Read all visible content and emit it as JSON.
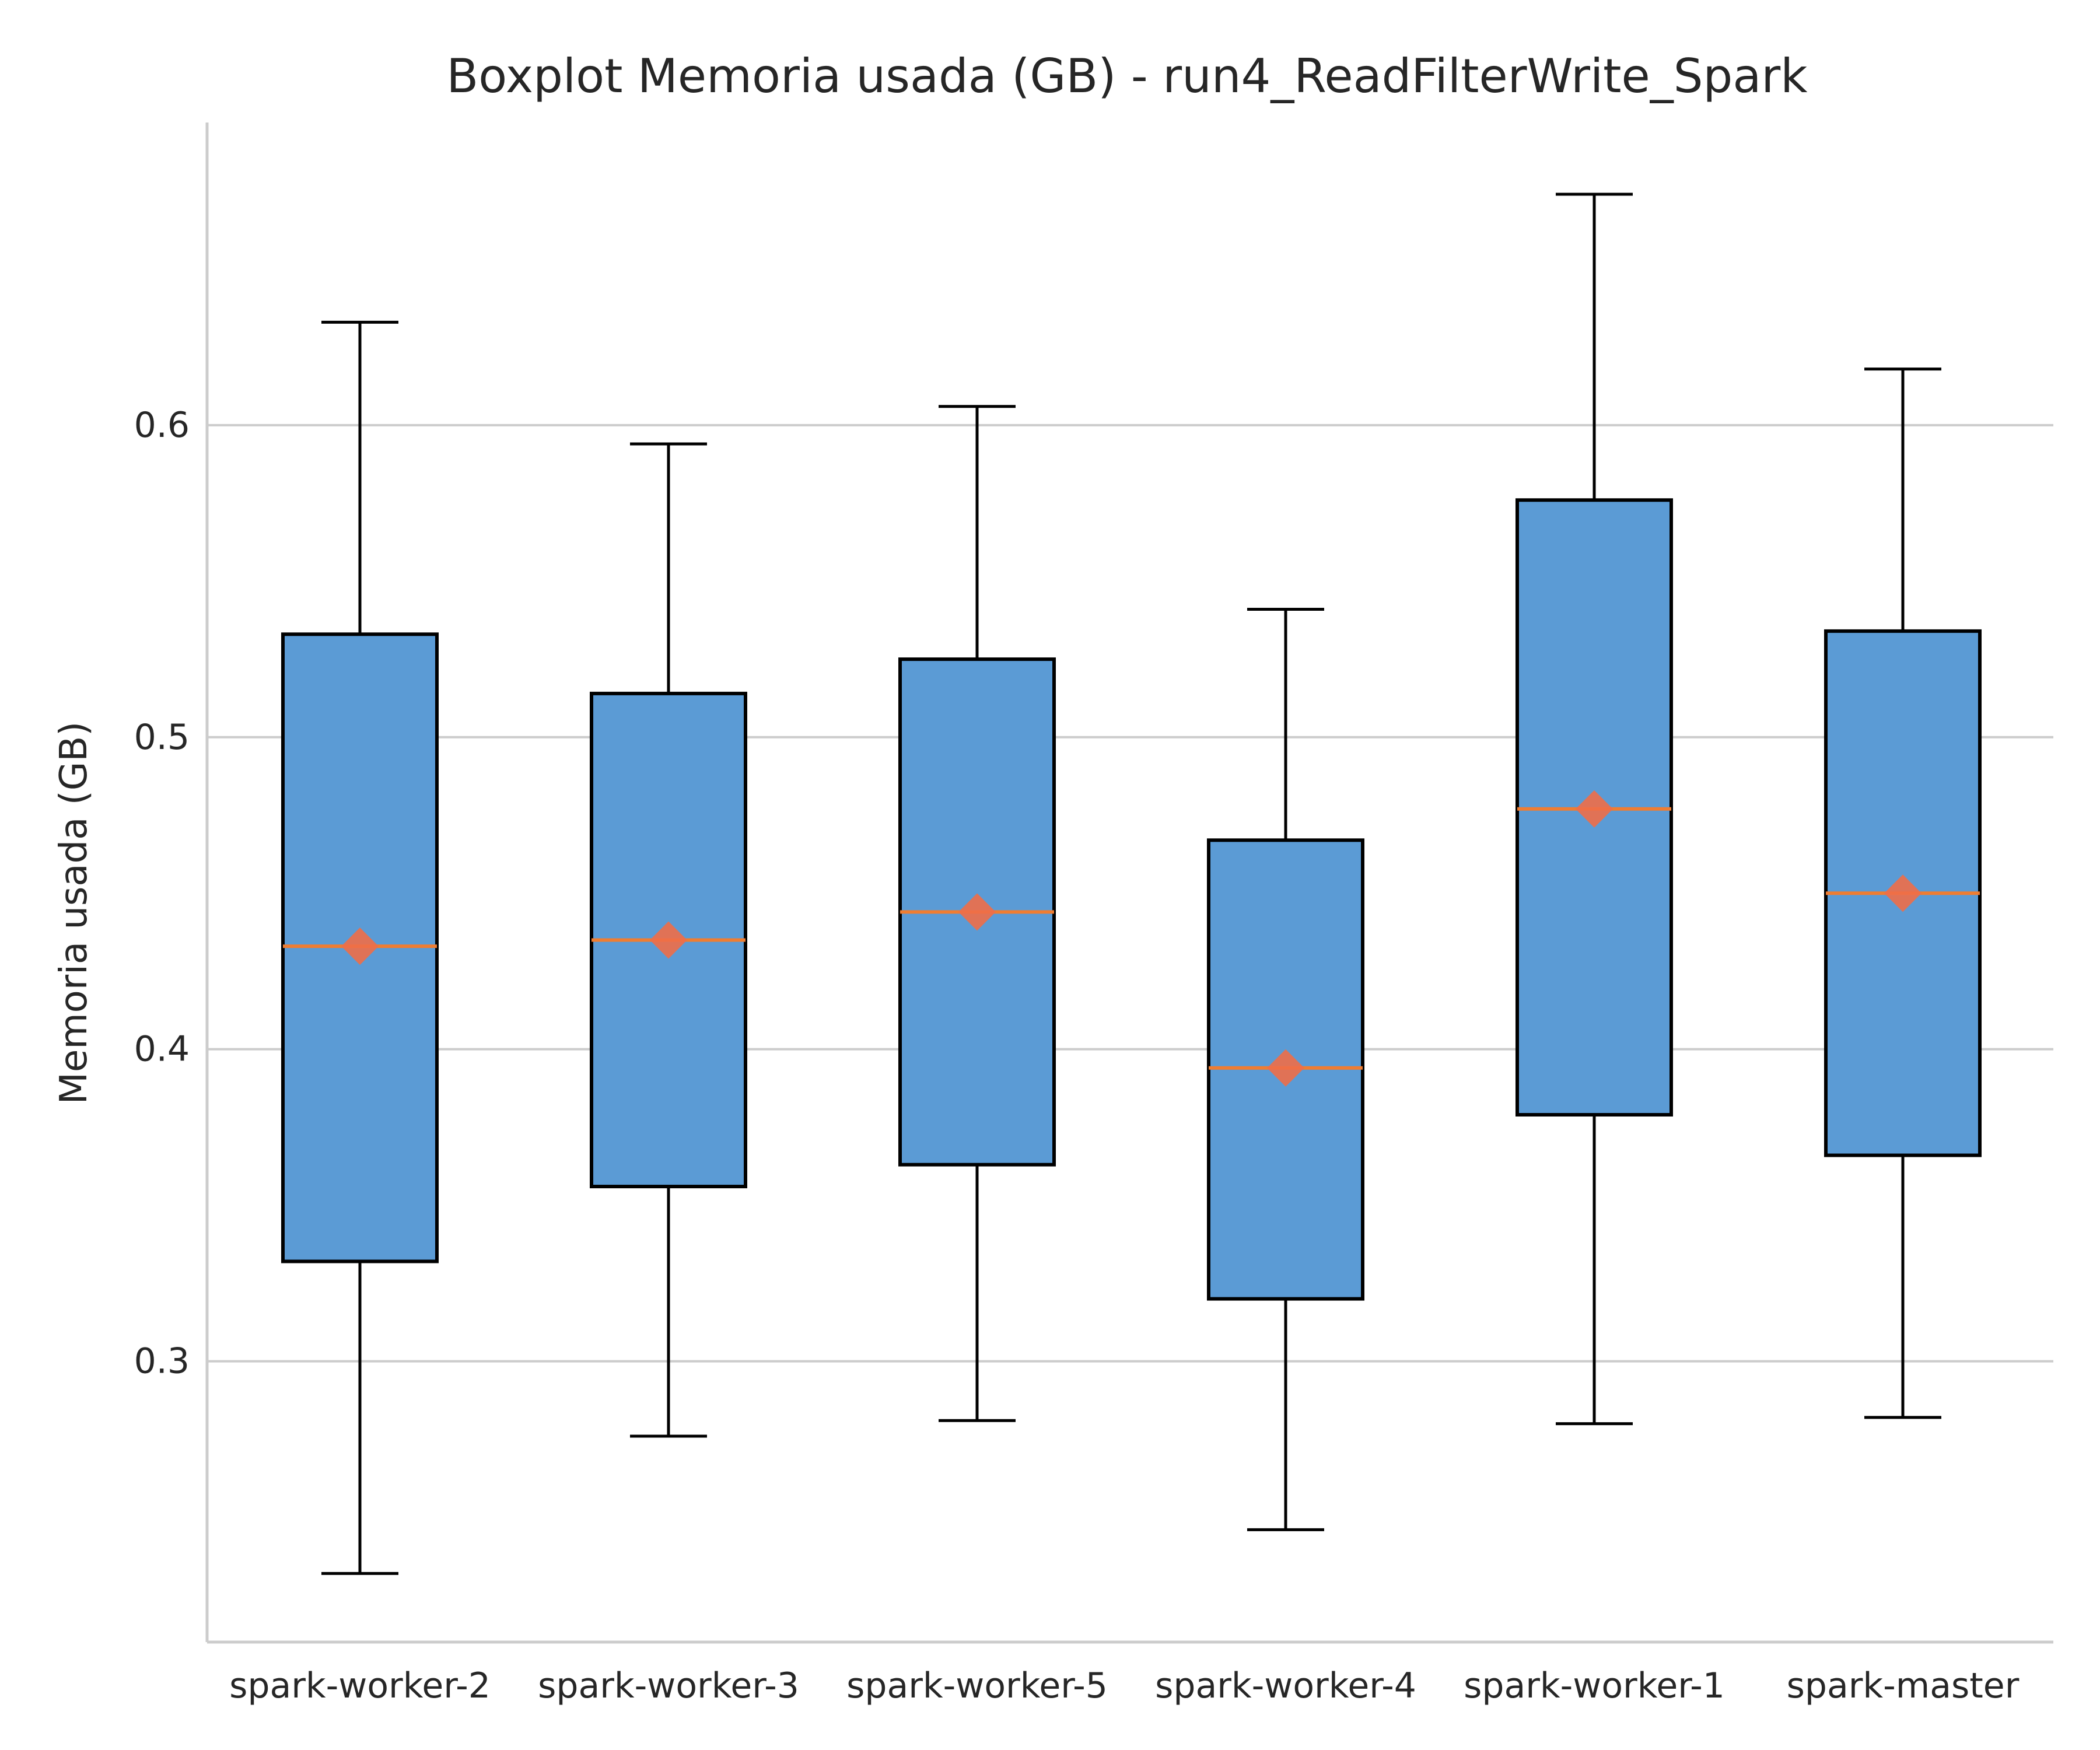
{
  "chart_data": {
    "type": "box",
    "title": "Boxplot Memoria usada (GB) - run4_ReadFilterWrite_Spark",
    "xlabel": "",
    "ylabel": "Memoria usada (GB)",
    "ylim": [
      0.21,
      0.697
    ],
    "yticks": [
      0.3,
      0.4,
      0.5,
      0.6
    ],
    "ytick_labels": [
      "0.3",
      "0.4",
      "0.5",
      "0.6"
    ],
    "grid": "y",
    "categories": [
      "spark-worker-2",
      "spark-worker-3",
      "spark-worker-5",
      "spark-worker-4",
      "spark-worker-1",
      "spark-master"
    ],
    "boxes": [
      {
        "whisker_low": 0.232,
        "q1": 0.332,
        "median": 0.433,
        "q3": 0.533,
        "whisker_high": 0.633,
        "mean": 0.433
      },
      {
        "whisker_low": 0.276,
        "q1": 0.356,
        "median": 0.435,
        "q3": 0.514,
        "whisker_high": 0.594,
        "mean": 0.435
      },
      {
        "whisker_low": 0.281,
        "q1": 0.363,
        "median": 0.444,
        "q3": 0.525,
        "whisker_high": 0.606,
        "mean": 0.444
      },
      {
        "whisker_low": 0.246,
        "q1": 0.32,
        "median": 0.394,
        "q3": 0.467,
        "whisker_high": 0.541,
        "mean": 0.394
      },
      {
        "whisker_low": 0.28,
        "q1": 0.379,
        "median": 0.477,
        "q3": 0.576,
        "whisker_high": 0.674,
        "mean": 0.477
      },
      {
        "whisker_low": 0.282,
        "q1": 0.366,
        "median": 0.45,
        "q3": 0.534,
        "whisker_high": 0.618,
        "mean": 0.45
      }
    ],
    "colors": {
      "box_fill": "#5b9bd5",
      "box_edge": "#000000",
      "median": "#ef7d32",
      "mean_marker": "#ee6e48",
      "grid": "#cccccc",
      "axis": "#cccccc"
    }
  }
}
